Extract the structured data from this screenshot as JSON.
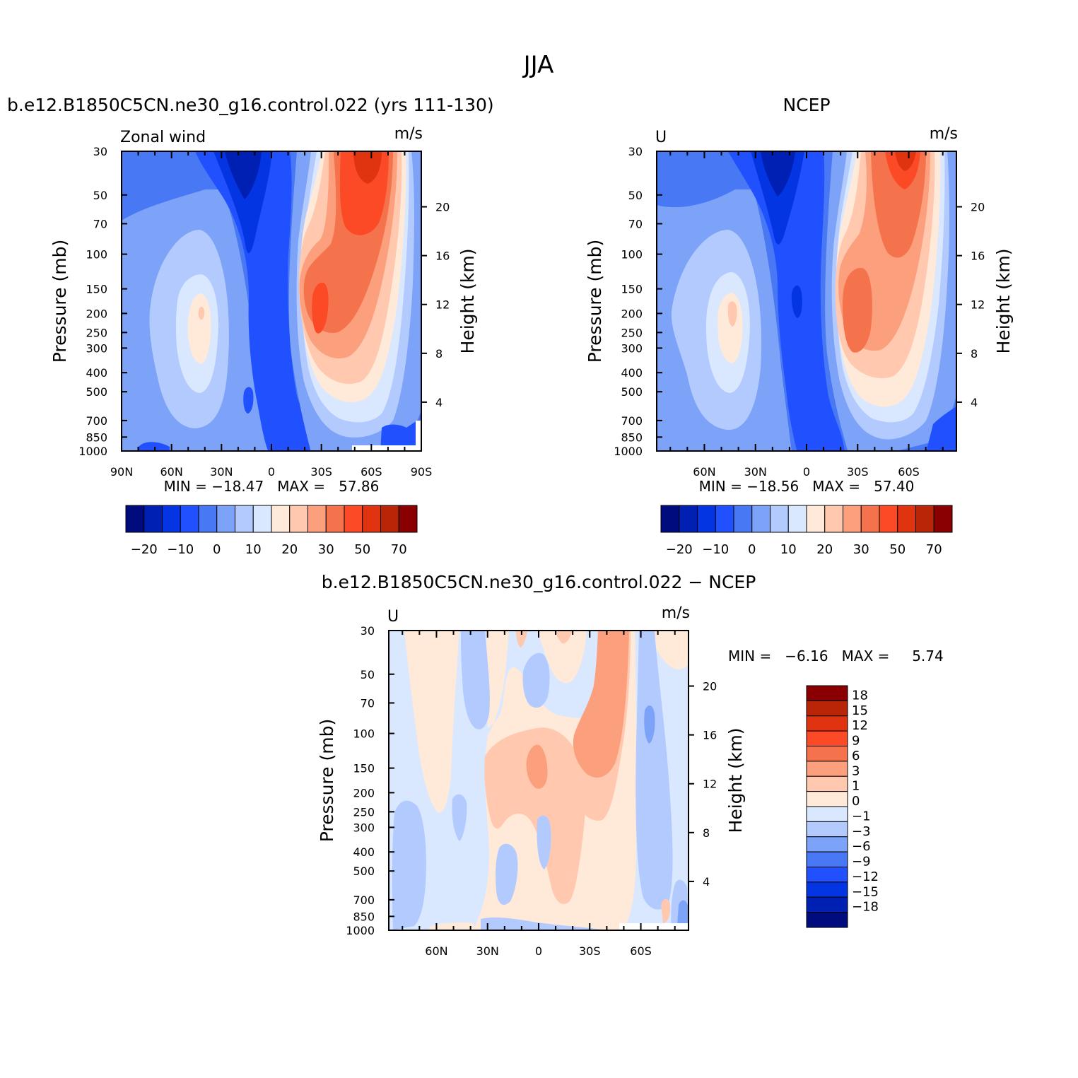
{
  "figure": {
    "title": "JJA"
  },
  "colors": {
    "wind_levels": [
      "#000c7d",
      "#001fb3",
      "#0435e3",
      "#2151ff",
      "#4978f5",
      "#7da3f8",
      "#b3caff",
      "#d9e8ff",
      "#ffe9d9",
      "#ffc8af",
      "#fc9f7d",
      "#f5734c",
      "#fc4a26",
      "#e03310",
      "#b82507",
      "#8a0002"
    ],
    "diff_levels": [
      "#000c7d",
      "#001fb3",
      "#0435e3",
      "#2151ff",
      "#4978f5",
      "#7da3f8",
      "#b3caff",
      "#d9e8ff",
      "#ffe9d9",
      "#ffc8af",
      "#fc9f7d",
      "#f5734c",
      "#fc4a26",
      "#e03310",
      "#b82507",
      "#8a0002"
    ]
  },
  "chart_data": [
    {
      "type": "heatmap",
      "id": "model",
      "title": "b.e12.B1850C5CN.ne30_g16.control.022 (yrs 111-130)",
      "left_label": "Zonal wind",
      "units": "m/s",
      "ylabel": "Pressure (mb)",
      "right_ylabel": "Height (km)",
      "pressure_ticks": [
        "30",
        "50",
        "70",
        "100",
        "150",
        "200",
        "250",
        "300",
        "400",
        "500",
        "700",
        "850",
        "1000"
      ],
      "height_ticks": [
        "20",
        "16",
        "12",
        "8",
        "4"
      ],
      "x_ticks": [
        "90N",
        "60N",
        "30N",
        "0",
        "30S",
        "60S",
        "90S"
      ],
      "xlim": [
        -90,
        90
      ],
      "min_max": "MIN = −18.47   MAX =   57.86",
      "colorbar_labels": [
        "−20",
        "−10",
        "0",
        "10",
        "20",
        "30",
        "50",
        "70"
      ]
    },
    {
      "type": "heatmap",
      "id": "obs",
      "title": "NCEP",
      "left_label": "U",
      "units": "m/s",
      "ylabel": "Pressure (mb)",
      "right_ylabel": "Height (km)",
      "pressure_ticks": [
        "30",
        "50",
        "70",
        "100",
        "150",
        "200",
        "250",
        "300",
        "400",
        "500",
        "700",
        "850",
        "1000"
      ],
      "height_ticks": [
        "20",
        "16",
        "12",
        "8",
        "4"
      ],
      "x_ticks": [
        "60N",
        "30N",
        "0",
        "30S",
        "60S"
      ],
      "xlim": [
        -88,
        88
      ],
      "min_max": "MIN = −18.56   MAX =   57.40",
      "colorbar_labels": [
        "−20",
        "−10",
        "0",
        "10",
        "20",
        "30",
        "50",
        "70"
      ]
    },
    {
      "type": "heatmap",
      "id": "diff",
      "title": "b.e12.B1850C5CN.ne30_g16.control.022 − NCEP",
      "left_label": "U",
      "units": "m/s",
      "ylabel": "Pressure (mb)",
      "right_ylabel": "Height (km)",
      "pressure_ticks": [
        "30",
        "50",
        "70",
        "100",
        "150",
        "200",
        "250",
        "300",
        "400",
        "500",
        "700",
        "850",
        "1000"
      ],
      "height_ticks": [
        "20",
        "16",
        "12",
        "8",
        "4"
      ],
      "x_ticks": [
        "60N",
        "30N",
        "0",
        "30S",
        "60S"
      ],
      "xlim": [
        -88,
        88
      ],
      "min_max_label": "MIN =   −6.16   MAX =     5.74",
      "colorbar_labels": [
        "18",
        "15",
        "12",
        "9",
        "6",
        "3",
        "1",
        "0",
        "−1",
        "−3",
        "−6",
        "−9",
        "−12",
        "−15",
        "−18"
      ]
    }
  ]
}
